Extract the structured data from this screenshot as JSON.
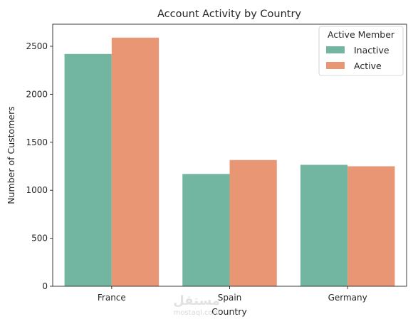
{
  "chart_data": {
    "type": "bar",
    "title": "Account Activity by Country",
    "xlabel": "Country",
    "ylabel": "Number of Customers",
    "categories": [
      "France",
      "Spain",
      "Germany"
    ],
    "series": [
      {
        "name": "Inactive",
        "values": [
          2420,
          1170,
          1265
        ],
        "color": "#72b6a1"
      },
      {
        "name": "Active",
        "values": [
          2590,
          1315,
          1250
        ],
        "color": "#e99675"
      }
    ],
    "ylim": [
      0,
      2730
    ],
    "yticks": [
      0,
      500,
      1000,
      1500,
      2000,
      2500
    ],
    "legend": {
      "title": "Active Member",
      "placement": "top-right"
    },
    "grid": false
  },
  "watermark": {
    "text": "mostaql.com",
    "arabic": "مستقل"
  }
}
